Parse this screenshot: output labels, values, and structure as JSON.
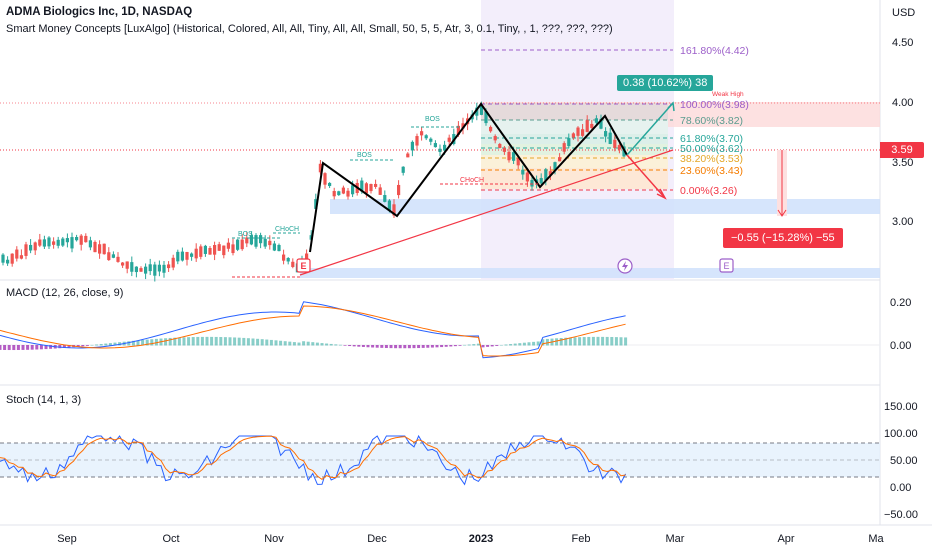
{
  "header": {
    "title": "ADMA Biologics Inc, 1D, NASDAQ",
    "indicator": "Smart Money Concepts [LuxAlgo] (Historical, Colored, All, All, Tiny, All, All, Small, 50, 5, 5, Atr, 3, 0.1, Tiny, , 1, ???, ???, ???)"
  },
  "price_pane": {
    "currency": "USD",
    "current_price": "3.59",
    "axis_ticks": [
      "4.50",
      "4.00",
      "3.50",
      "3.00"
    ],
    "fib_levels": [
      {
        "label": "161.80%(4.42)",
        "color": "#9c5fc9"
      },
      {
        "label": "100.00%(3.98)",
        "color": "#9c5fc9"
      },
      {
        "label": "78.60%(3.82)",
        "color": "#5b9c8f"
      },
      {
        "label": "61.80%(3.70)",
        "color": "#26a69a"
      },
      {
        "label": "50.00%(3.62)",
        "color": "#26a69a"
      },
      {
        "label": "38.20%(3.53)",
        "color": "#e4a729"
      },
      {
        "label": "23.60%(3.43)",
        "color": "#f57c00"
      },
      {
        "label": "0.00%(3.26)",
        "color": "#f23645"
      }
    ],
    "gain_box": "0.38 (10.62%) 38",
    "loss_box": "−0.55 (−15.28%) −55",
    "weak_high": "Weak High",
    "smc_labels": [
      "BOS",
      "CHoCH",
      "BOS",
      "BOS",
      "CHoCH"
    ],
    "event_e1": "E",
    "event_e2": "E"
  },
  "macd_pane": {
    "label": "MACD (12, 26, close, 9)",
    "axis_ticks": [
      "0.20",
      "0.00"
    ]
  },
  "stoch_pane": {
    "label": "Stoch (14, 1, 3)",
    "axis_ticks": [
      "150.00",
      "100.00",
      "50.00",
      "0.00",
      "−50.00"
    ]
  },
  "time_axis": {
    "labels": [
      "Sep",
      "Oct",
      "Nov",
      "Dec",
      "2023",
      "Feb",
      "Mar",
      "Apr",
      "Ma"
    ]
  },
  "colors": {
    "up": "#26a69a",
    "down": "#ef5350",
    "macd_line": "#2962ff",
    "signal_line": "#ff6d00",
    "price_tag": "#f23645",
    "gain_tag": "#26a69a",
    "loss_tag": "#f23645"
  }
}
